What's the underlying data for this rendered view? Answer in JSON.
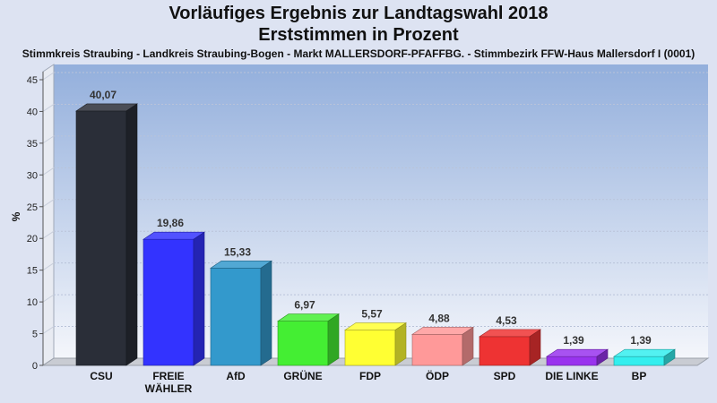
{
  "header": {
    "title": "Vorläufiges Ergebnis zur Landtagswahl 2018",
    "subtitle": "Erststimmen in Prozent",
    "district": "Stimmkreis Straubing - Landkreis Straubing-Bogen - Markt MALLERSDORF-PFAFFBG. - Stimmbezirk FFW-Haus Mallersdorf I (0001)"
  },
  "chart_data": {
    "type": "bar",
    "title": "Vorläufiges Ergebnis zur Landtagswahl 2018",
    "subtitle": "Erststimmen in Prozent",
    "xlabel": "",
    "ylabel": "%",
    "ylim": [
      0,
      45
    ],
    "yticks": [
      0,
      5,
      10,
      15,
      20,
      25,
      30,
      35,
      40,
      45
    ],
    "grid": true,
    "categories": [
      "CSU",
      [
        "FREIE",
        "WÄHLER"
      ],
      "AfD",
      "GRÜNE",
      "FDP",
      "ÖDP",
      "SPD",
      "DIE LINKE",
      "BP"
    ],
    "values": [
      40.07,
      19.86,
      15.33,
      6.97,
      5.57,
      4.88,
      4.53,
      1.39,
      1.39
    ],
    "value_labels": [
      "40,07",
      "19,86",
      "15,33",
      "6,97",
      "5,57",
      "4,88",
      "4,53",
      "1,39",
      "1,39"
    ],
    "colors": [
      "#2a2e38",
      "#3333ff",
      "#3399cc",
      "#44ee33",
      "#ffff33",
      "#ff9999",
      "#ee3333",
      "#9933ee",
      "#33eeee"
    ]
  }
}
